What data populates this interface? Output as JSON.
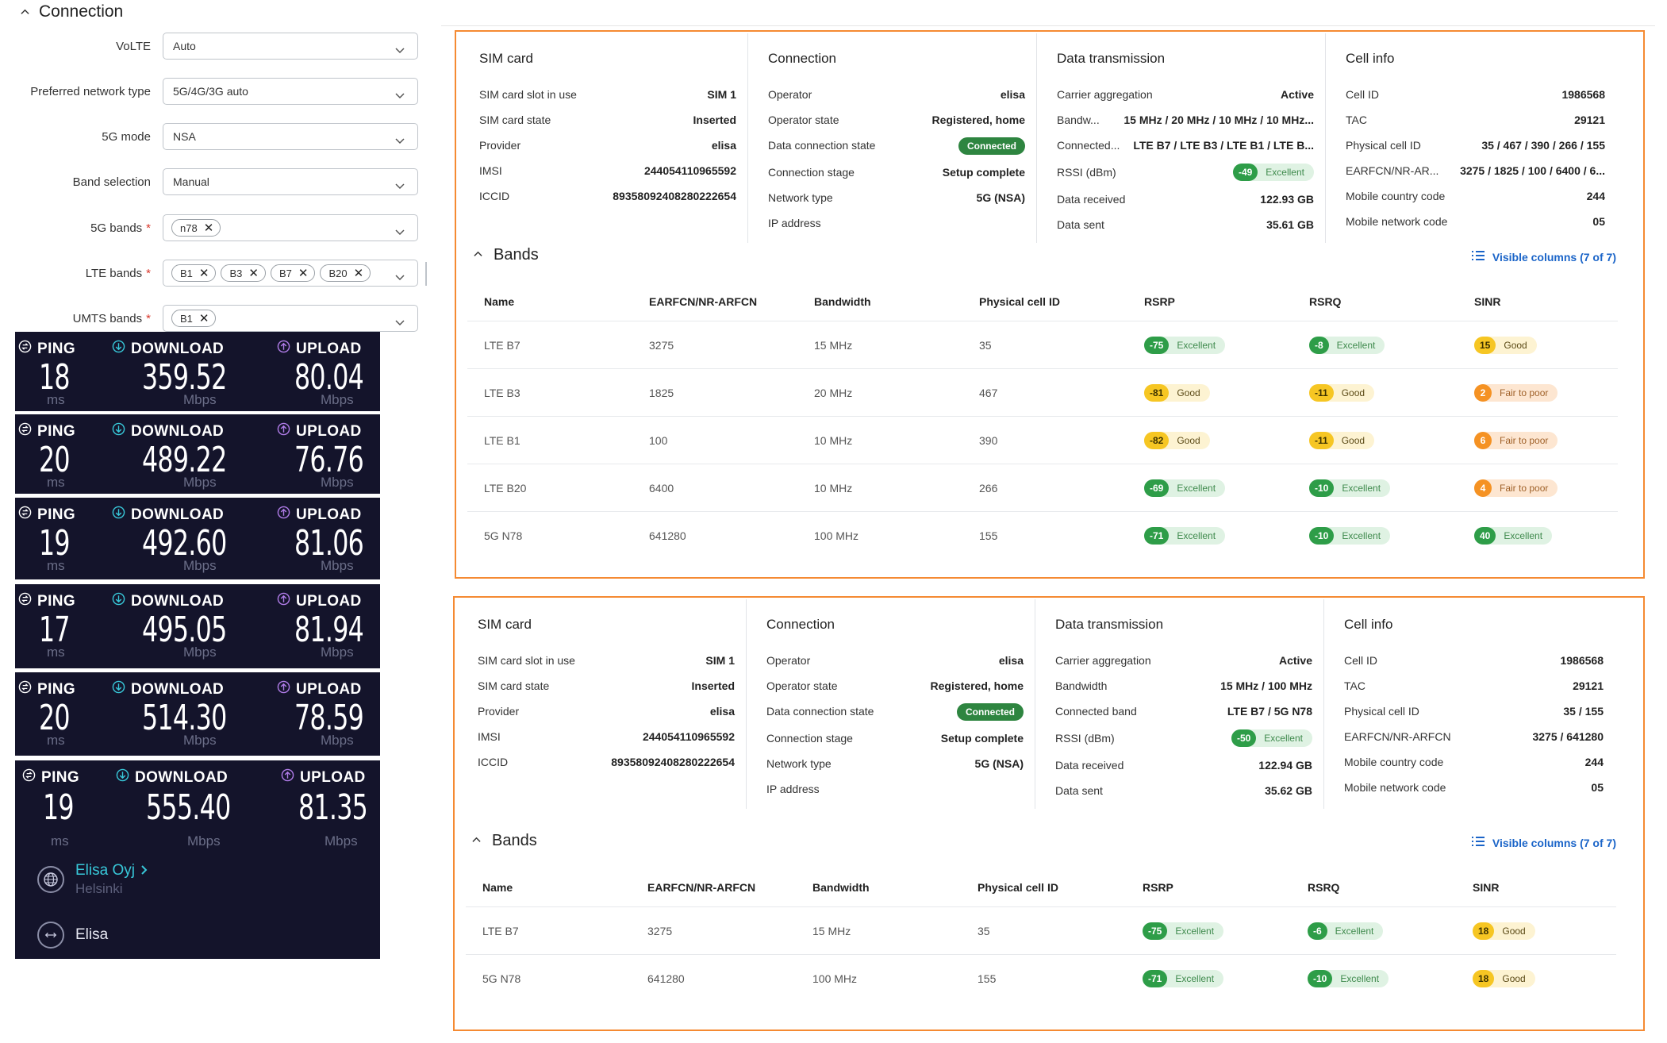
{
  "connection": {
    "title": "Connection",
    "fields": [
      {
        "label": "VoLTE",
        "value": "Auto",
        "required": false,
        "chips": []
      },
      {
        "label": "Preferred network type",
        "value": "5G/4G/3G auto",
        "required": false,
        "chips": []
      },
      {
        "label": "5G mode",
        "value": "NSA",
        "required": false,
        "chips": []
      },
      {
        "label": "Band selection",
        "value": "Manual",
        "required": false,
        "chips": []
      },
      {
        "label": "5G bands",
        "value": "",
        "required": true,
        "chips": [
          "n78"
        ]
      },
      {
        "label": "LTE bands",
        "value": "",
        "required": true,
        "chips": [
          "B1",
          "B3",
          "B7",
          "B20"
        ]
      },
      {
        "label": "UMTS bands",
        "value": "",
        "required": true,
        "chips": [
          "B1"
        ]
      }
    ]
  },
  "speedtest": {
    "labels": {
      "ping": "PING",
      "download": "DOWNLOAD",
      "upload": "UPLOAD"
    },
    "units": {
      "ping": "ms",
      "download": "Mbps",
      "upload": "Mbps"
    },
    "results": [
      {
        "ping": "18",
        "download": "359.52",
        "upload": "80.04"
      },
      {
        "ping": "20",
        "download": "489.22",
        "upload": "76.76"
      },
      {
        "ping": "19",
        "download": "492.60",
        "upload": "81.06"
      },
      {
        "ping": "17",
        "download": "495.05",
        "upload": "81.94"
      },
      {
        "ping": "20",
        "download": "514.30",
        "upload": "78.59"
      },
      {
        "ping": "19",
        "download": "555.40",
        "upload": "81.35"
      }
    ],
    "isp": {
      "name": "Elisa Oyj",
      "location": "Helsinki"
    },
    "server": {
      "name": "Elisa"
    }
  },
  "panels": [
    {
      "sim": {
        "title": "SIM card",
        "rows": [
          {
            "k": "SIM card slot in use",
            "v": "SIM 1"
          },
          {
            "k": "SIM card state",
            "v": "Inserted"
          },
          {
            "k": "Provider",
            "v": "elisa"
          },
          {
            "k": "IMSI",
            "v": "244054110965592"
          },
          {
            "k": "ICCID",
            "v": "89358092408280222654"
          }
        ]
      },
      "connection": {
        "title": "Connection",
        "rows": [
          {
            "k": "Operator",
            "v": "elisa"
          },
          {
            "k": "Operator state",
            "v": "Registered, home"
          },
          {
            "k": "Data connection state",
            "v": "Connected"
          },
          {
            "k": "Connection stage",
            "v": "Setup complete"
          },
          {
            "k": "Network type",
            "v": "5G (NSA)"
          },
          {
            "k": "IP address",
            "v": ""
          }
        ]
      },
      "data": {
        "title": "Data transmission",
        "rows": [
          {
            "k": "Carrier aggregation",
            "v": "Active"
          },
          {
            "k": "Bandw...",
            "v": "15 MHz / 20 MHz / 10 MHz / 10 MHz..."
          },
          {
            "k": "Connected...",
            "v": "LTE B7 / LTE B3 / LTE B1 / LTE B..."
          },
          {
            "k": "RSSI (dBm)",
            "v": "-49",
            "q": "Excellent"
          },
          {
            "k": "Data received",
            "v": "122.93 GB"
          },
          {
            "k": "Data sent",
            "v": "35.61 GB"
          }
        ]
      },
      "cell": {
        "title": "Cell info",
        "rows": [
          {
            "k": "Cell ID",
            "v": "1986568"
          },
          {
            "k": "TAC",
            "v": "29121"
          },
          {
            "k": "Physical cell ID",
            "v": "35 / 467 / 390 / 266 / 155"
          },
          {
            "k": "EARFCN/NR-AR...",
            "v": "3275 / 1825 / 100 / 6400 / 6..."
          },
          {
            "k": "Mobile country code",
            "v": "244"
          },
          {
            "k": "Mobile network code",
            "v": "05"
          }
        ]
      },
      "bands": {
        "title": "Bands",
        "visible_columns": "Visible columns (7 of 7)",
        "columns": [
          "Name",
          "EARFCN/NR-ARFCN",
          "Bandwidth",
          "Physical cell ID",
          "RSRP",
          "RSRQ",
          "SINR"
        ],
        "rows": [
          {
            "name": "LTE B7",
            "earfcn": "3275",
            "bw": "15 MHz",
            "pci": "35",
            "rsrp": "-75",
            "rsrp_q": "Excellent",
            "rsrq": "-8",
            "rsrq_q": "Excellent",
            "sinr": "15",
            "sinr_q": "Good"
          },
          {
            "name": "LTE B3",
            "earfcn": "1825",
            "bw": "20 MHz",
            "pci": "467",
            "rsrp": "-81",
            "rsrp_q": "Good",
            "rsrq": "-11",
            "rsrq_q": "Good",
            "sinr": "2",
            "sinr_q": "Fair to poor"
          },
          {
            "name": "LTE B1",
            "earfcn": "100",
            "bw": "10 MHz",
            "pci": "390",
            "rsrp": "-82",
            "rsrp_q": "Good",
            "rsrq": "-11",
            "rsrq_q": "Good",
            "sinr": "6",
            "sinr_q": "Fair to poor"
          },
          {
            "name": "LTE B20",
            "earfcn": "6400",
            "bw": "10 MHz",
            "pci": "266",
            "rsrp": "-69",
            "rsrp_q": "Excellent",
            "rsrq": "-10",
            "rsrq_q": "Excellent",
            "sinr": "4",
            "sinr_q": "Fair to poor"
          },
          {
            "name": "5G N78",
            "earfcn": "641280",
            "bw": "100 MHz",
            "pci": "155",
            "rsrp": "-71",
            "rsrp_q": "Excellent",
            "rsrq": "-10",
            "rsrq_q": "Excellent",
            "sinr": "40",
            "sinr_q": "Excellent"
          }
        ]
      }
    },
    {
      "sim": {
        "title": "SIM card",
        "rows": [
          {
            "k": "SIM card slot in use",
            "v": "SIM 1"
          },
          {
            "k": "SIM card state",
            "v": "Inserted"
          },
          {
            "k": "Provider",
            "v": "elisa"
          },
          {
            "k": "IMSI",
            "v": "244054110965592"
          },
          {
            "k": "ICCID",
            "v": "89358092408280222654"
          }
        ]
      },
      "connection": {
        "title": "Connection",
        "rows": [
          {
            "k": "Operator",
            "v": "elisa"
          },
          {
            "k": "Operator state",
            "v": "Registered, home"
          },
          {
            "k": "Data connection state",
            "v": "Connected"
          },
          {
            "k": "Connection stage",
            "v": "Setup complete"
          },
          {
            "k": "Network type",
            "v": "5G (NSA)"
          },
          {
            "k": "IP address",
            "v": ""
          }
        ]
      },
      "data": {
        "title": "Data transmission",
        "rows": [
          {
            "k": "Carrier aggregation",
            "v": "Active"
          },
          {
            "k": "Bandwidth",
            "v": "15 MHz / 100 MHz"
          },
          {
            "k": "Connected band",
            "v": "LTE B7 / 5G N78"
          },
          {
            "k": "RSSI (dBm)",
            "v": "-50",
            "q": "Excellent"
          },
          {
            "k": "Data received",
            "v": "122.94 GB"
          },
          {
            "k": "Data sent",
            "v": "35.62 GB"
          }
        ]
      },
      "cell": {
        "title": "Cell info",
        "rows": [
          {
            "k": "Cell ID",
            "v": "1986568"
          },
          {
            "k": "TAC",
            "v": "29121"
          },
          {
            "k": "Physical cell ID",
            "v": "35 / 155"
          },
          {
            "k": "EARFCN/NR-ARFCN",
            "v": "3275 / 641280"
          },
          {
            "k": "Mobile country code",
            "v": "244"
          },
          {
            "k": "Mobile network code",
            "v": "05"
          }
        ]
      },
      "bands": {
        "title": "Bands",
        "visible_columns": "Visible columns (7 of 7)",
        "columns": [
          "Name",
          "EARFCN/NR-ARFCN",
          "Bandwidth",
          "Physical cell ID",
          "RSRP",
          "RSRQ",
          "SINR"
        ],
        "rows": [
          {
            "name": "LTE B7",
            "earfcn": "3275",
            "bw": "15 MHz",
            "pci": "35",
            "rsrp": "-75",
            "rsrp_q": "Excellent",
            "rsrq": "-6",
            "rsrq_q": "Excellent",
            "sinr": "18",
            "sinr_q": "Good"
          },
          {
            "name": "5G N78",
            "earfcn": "641280",
            "bw": "100 MHz",
            "pci": "155",
            "rsrp": "-71",
            "rsrp_q": "Excellent",
            "rsrq": "-10",
            "rsrq_q": "Excellent",
            "sinr": "18",
            "sinr_q": "Good"
          }
        ]
      }
    }
  ],
  "colors": {
    "panel_border": "#f58a32",
    "accent_link": "#1a64c8",
    "speedtest_bg": "#14142b",
    "excellent": "#2e9d48",
    "good": "#f6c623",
    "fair": "#f59223"
  }
}
